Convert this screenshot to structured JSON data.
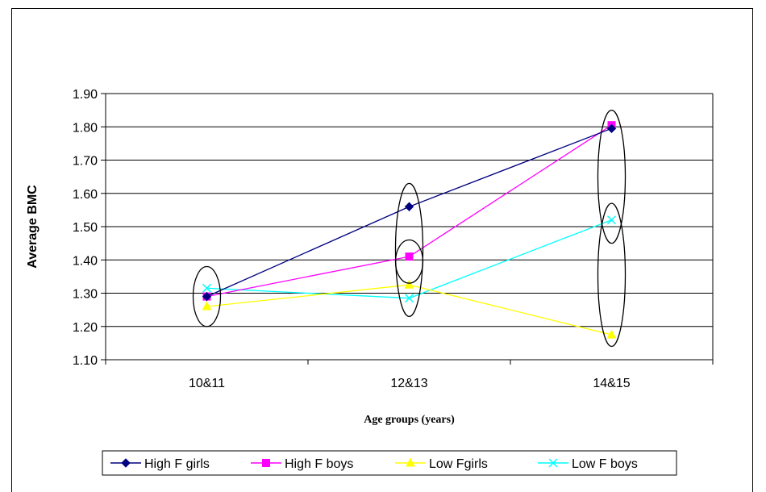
{
  "chart_data": {
    "type": "line",
    "title": "",
    "xlabel": "Age groups (years)",
    "ylabel": "Average BMC",
    "categories": [
      "10&11",
      "12&13",
      "14&15"
    ],
    "ylim": [
      1.1,
      1.9
    ],
    "yticks": [
      "1.10",
      "1.20",
      "1.30",
      "1.40",
      "1.50",
      "1.60",
      "1.70",
      "1.80",
      "1.90"
    ],
    "grid": true,
    "legend_position": "bottom",
    "series": [
      {
        "name": "High F girls",
        "values": [
          1.29,
          1.56,
          1.795
        ],
        "color": "#000080",
        "marker": "diamond"
      },
      {
        "name": "High F boys",
        "values": [
          1.29,
          1.41,
          1.805
        ],
        "color": "#ff00ff",
        "marker": "square"
      },
      {
        "name": "Low Fgirls",
        "values": [
          1.26,
          1.325,
          1.175
        ],
        "color": "#ffff00",
        "marker": "triangle"
      },
      {
        "name": "Low F boys",
        "values": [
          1.315,
          1.285,
          1.52
        ],
        "color": "#00ffff",
        "marker": "x"
      }
    ],
    "annotations": [
      {
        "type": "ellipse",
        "category": "10&11",
        "y_range": [
          1.2,
          1.38
        ]
      },
      {
        "type": "ellipse",
        "category": "12&13",
        "y_range": [
          1.23,
          1.63
        ]
      },
      {
        "type": "ellipse",
        "category": "12&13",
        "y_range": [
          1.33,
          1.46
        ]
      },
      {
        "type": "ellipse",
        "category": "14&15",
        "y_range": [
          1.45,
          1.85
        ]
      },
      {
        "type": "ellipse",
        "category": "14&15",
        "y_range": [
          1.14,
          1.57
        ]
      }
    ]
  }
}
